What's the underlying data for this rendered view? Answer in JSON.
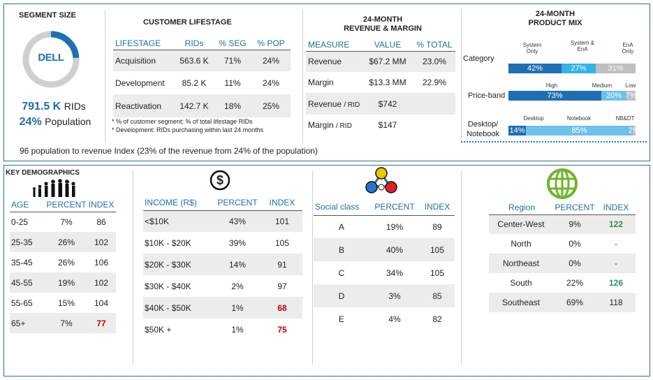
{
  "segment": {
    "title": "SEGMENT SIZE",
    "logo": "DELL",
    "rids_value": "791.5 K",
    "rids_label": "RIDs",
    "pop_value": "24%",
    "pop_label": "Population"
  },
  "lifestage": {
    "title": "CUSTOMER LIFESTAGE",
    "headers": [
      "LIFESTAGE",
      "RIDs",
      "% SEG",
      "% POP"
    ],
    "rows": [
      [
        "Acquisition",
        "563.6 K",
        "71%",
        "24%"
      ],
      [
        "Development",
        "85.2 K",
        "11%",
        "24%"
      ],
      [
        "Reactivation",
        "142.7 K",
        "18%",
        "25%"
      ]
    ],
    "note1": "* % of customer segment; % of total lifestage RIDs",
    "note2": "* Development: RIDs purchasing within last 24 months"
  },
  "revenue": {
    "title_line1": "24-MONTH",
    "title_line2": "REVENUE & MARGIN",
    "headers": [
      "MEASURE",
      "VALUE",
      "% TOTAL"
    ],
    "rows": [
      {
        "measure": "Revenue",
        "sub": "",
        "value": "$67.2 MM",
        "pct": "23.0%"
      },
      {
        "measure": "Margin",
        "sub": "",
        "value": "$13.3 MM",
        "pct": "22.9%"
      },
      {
        "measure": "Revenue",
        "sub": "/ RID",
        "value": "$742",
        "pct": ""
      },
      {
        "measure": "Margin",
        "sub": "/ RID",
        "value": "$147",
        "pct": ""
      }
    ]
  },
  "product_mix": {
    "title_line1": "24-MONTH",
    "title_line2": "PRODUCT MIX",
    "rows": [
      {
        "label": "Category",
        "tops": [
          "System Only",
          "System & EnA",
          "EnA Only"
        ],
        "segments": [
          {
            "label": "42%",
            "value": 42,
            "color": "#1f6fb4"
          },
          {
            "label": "27%",
            "value": 27,
            "color": "#34b3e6"
          },
          {
            "label": "31%",
            "value": 31,
            "color": "#bfbfbf"
          }
        ]
      },
      {
        "label": "Price-band",
        "tops": [
          "High",
          "Medium",
          "Low"
        ],
        "segments": [
          {
            "label": "73%",
            "value": 73,
            "color": "#1f6fb4"
          },
          {
            "label": "20%",
            "value": 20,
            "color": "#6fc0ec"
          },
          {
            "label": "7%",
            "value": 7,
            "color": "#bfbfbf"
          }
        ]
      },
      {
        "label_line1": "Desktop/",
        "label_line2": "Notebook",
        "tops": [
          "Desktop",
          "Notebook",
          "NB&DT"
        ],
        "segments": [
          {
            "label": "14%",
            "value": 14,
            "color": "#1f6fb4"
          },
          {
            "label": "85%",
            "value": 85,
            "color": "#6fc0ec"
          },
          {
            "label": "2%",
            "value": 2,
            "color": "#bfbfbf"
          }
        ]
      }
    ]
  },
  "index_note": "96 population to revenue Index (23% of the revenue from 24% of the population)",
  "demographics": {
    "title": "KEY DEMOGRAPHICS",
    "headers": [
      "AGE",
      "PERCENT",
      "INDEX"
    ],
    "rows": [
      [
        "0-25",
        "7%",
        "86"
      ],
      [
        "25-35",
        "26%",
        "102"
      ],
      [
        "35-45",
        "26%",
        "106"
      ],
      [
        "45-55",
        "19%",
        "102"
      ],
      [
        "55-65",
        "15%",
        "104"
      ],
      [
        "65+",
        "7%",
        "77"
      ]
    ]
  },
  "income": {
    "icon_symbol": "$",
    "headers": [
      "INCOME (R$)",
      "PERCENT",
      "INDEX"
    ],
    "rows": [
      [
        "<$10K",
        "43%",
        "101"
      ],
      [
        "$10K - $20K",
        "39%",
        "105"
      ],
      [
        "$20K - $30K",
        "14%",
        "91"
      ],
      [
        "$30K - $40K",
        "2%",
        "97"
      ],
      [
        "$40K - $50K",
        "1%",
        "68"
      ],
      [
        "$50K +",
        "1%",
        "75"
      ]
    ]
  },
  "social": {
    "headers": [
      "Social class",
      "PERCENT",
      "INDEX"
    ],
    "rows": [
      [
        "A",
        "19%",
        "89"
      ],
      [
        "B",
        "40%",
        "105"
      ],
      [
        "C",
        "34%",
        "105"
      ],
      [
        "D",
        "3%",
        "85"
      ],
      [
        "E",
        "4%",
        "82"
      ]
    ]
  },
  "region": {
    "headers": [
      "Region",
      "PERCENT",
      "INDEX"
    ],
    "rows": [
      [
        "Center-West",
        "9%",
        "122"
      ],
      [
        "North",
        "0%",
        "-"
      ],
      [
        "Northeast",
        "0%",
        "-"
      ],
      [
        "South",
        "22%",
        "126"
      ],
      [
        "Southeast",
        "69%",
        "118"
      ]
    ]
  },
  "colors": {
    "accent": "#1f6fa8",
    "red": "#c00000",
    "green": "#2e8b57",
    "border": "#2e6f8e"
  }
}
